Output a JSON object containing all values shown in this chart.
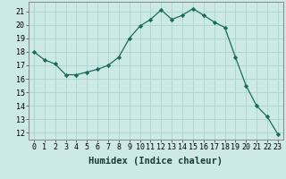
{
  "x": [
    0,
    1,
    2,
    3,
    4,
    5,
    6,
    7,
    8,
    9,
    10,
    11,
    12,
    13,
    14,
    15,
    16,
    17,
    18,
    19,
    20,
    21,
    22,
    23
  ],
  "y": [
    18.0,
    17.4,
    17.1,
    16.3,
    16.3,
    16.5,
    16.7,
    17.0,
    17.6,
    19.0,
    19.9,
    20.4,
    21.1,
    20.4,
    20.7,
    21.2,
    20.7,
    20.2,
    19.8,
    17.6,
    15.5,
    14.0,
    13.2,
    11.9
  ],
  "xlabel": "Humidex (Indice chaleur)",
  "ylim": [
    11.5,
    21.7
  ],
  "xlim": [
    -0.5,
    23.5
  ],
  "yticks": [
    12,
    13,
    14,
    15,
    16,
    17,
    18,
    19,
    20,
    21
  ],
  "xticks": [
    0,
    1,
    2,
    3,
    4,
    5,
    6,
    7,
    8,
    9,
    10,
    11,
    12,
    13,
    14,
    15,
    16,
    17,
    18,
    19,
    20,
    21,
    22,
    23
  ],
  "line_color": "#1a6b5e",
  "marker_color": "#1a6b5e",
  "bg_color": "#cce9e5",
  "grid_color": "#aad4cf",
  "axis_label_fontsize": 7,
  "tick_fontsize": 6,
  "xlabel_fontsize": 7.5
}
